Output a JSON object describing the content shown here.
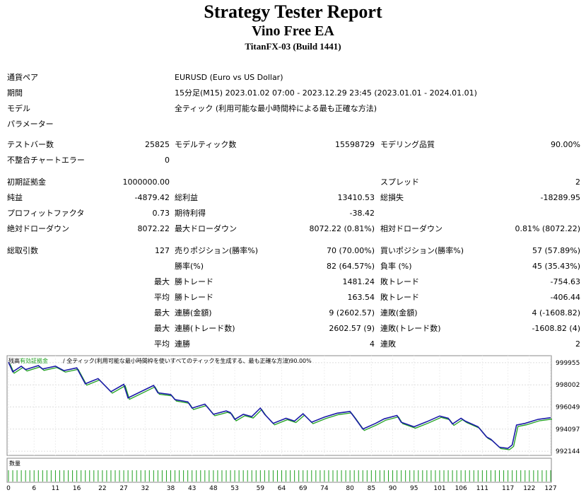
{
  "header": {
    "title": "Strategy Tester Report",
    "ea_name": "Vino Free EA",
    "server": "TitanFX-03 (Build 1441)"
  },
  "info": {
    "symbol_label": "通貨ペア",
    "symbol_value": "EURUSD (Euro vs US Dollar)",
    "period_label": "期間",
    "period_value": "15分足(M15) 2023.01.02 07:00 - 2023.12.29 23:45 (2023.01.01 - 2024.01.01)",
    "model_label": "モデル",
    "model_value": "全ティック (利用可能な最小時間枠による最も正確な方法)",
    "params_label": "パラメーター"
  },
  "stats": {
    "bars_label": "テストバー数",
    "bars_value": "25825",
    "ticks_label": "モデルティック数",
    "ticks_value": "15598729",
    "quality_label": "モデリング品質",
    "quality_value": "90.00%",
    "mismatch_label": "不整合チャートエラー",
    "mismatch_value": "0",
    "deposit_label": "初期証拠金",
    "deposit_value": "1000000.00",
    "spread_label": "スプレッド",
    "spread_value": "2",
    "netprofit_label": "純益",
    "netprofit_value": "-4879.42",
    "grossprofit_label": "総利益",
    "grossprofit_value": "13410.53",
    "grossloss_label": "総損失",
    "grossloss_value": "-18289.95",
    "pf_label": "プロフィットファクタ",
    "pf_value": "0.73",
    "expected_label": "期待利得",
    "expected_value": "-38.42",
    "absdd_label": "絶対ドローダウン",
    "absdd_value": "8072.22",
    "maxdd_label": "最大ドローダウン",
    "maxdd_value": "8072.22 (0.81%)",
    "reldd_label": "相対ドローダウン",
    "reldd_value": "0.81% (8072.22)",
    "trades_label": "総取引数",
    "trades_value": "127",
    "short_label": "売りポジション(勝率%)",
    "short_value": "70 (70.00%)",
    "long_label": "買いポジション(勝率%)",
    "long_value": "57 (57.89%)",
    "winrate_label": "勝率(%)",
    "winrate_value": "82 (64.57%)",
    "lossrate_label": "負率 (%)",
    "lossrate_value": "45 (35.43%)",
    "max_label": "最大",
    "avg_label": "平均",
    "largest_win_label": "勝トレード",
    "largest_win_value": "1481.24",
    "largest_loss_label": "敗トレード",
    "largest_loss_value": "-754.63",
    "avg_win_label": "勝トレード",
    "avg_win_value": "163.54",
    "avg_loss_label": "敗トレード",
    "avg_loss_value": "-406.44",
    "consec_wins_money_label": "連勝(金額)",
    "consec_wins_money_value": "9 (2602.57)",
    "consec_loss_money_label": "連敗(金額)",
    "consec_loss_money_value": "4 (-1608.82)",
    "consec_wins_count_label": "連勝(トレード数)",
    "consec_wins_count_value": "2602.57 (9)",
    "consec_loss_count_label": "連敗(トレード数)",
    "consec_loss_count_value": "-1608.82 (4)",
    "avg_consec_wins_label": "連勝",
    "avg_consec_wins_value": "4",
    "avg_consec_loss_label": "連敗",
    "avg_consec_loss_value": "2"
  },
  "chart": {
    "legend_balance": "残高",
    "legend_equity": "有効証拠金",
    "legend_rest": "/ 全ティック(利用可能な最小時間枠を使いすべてのティックを生成する、最も正確な方法)",
    "legend_quality": "/ 90.00%",
    "volume_label": "数量",
    "colors": {
      "balance": "#1a1aa8",
      "equity": "#20a020",
      "volume": "#20a020",
      "border": "#888888"
    }
  },
  "chart_data": {
    "type": "line",
    "y_ticks": [
      "999955",
      "998002",
      "996049",
      "994097",
      "992144"
    ],
    "x_ticks": [
      "0",
      "6",
      "11",
      "16",
      "22",
      "27",
      "32",
      "38",
      "43",
      "48",
      "53",
      "59",
      "64",
      "69",
      "74",
      "80",
      "85",
      "90",
      "95",
      "101",
      "106",
      "111",
      "117",
      "122",
      "127"
    ],
    "xlim": [
      0,
      127
    ],
    "ylim": [
      991900,
      1000450
    ],
    "series": [
      {
        "name": "残高",
        "points": [
          [
            0,
            1000000
          ],
          [
            1,
            999150
          ],
          [
            3,
            999650
          ],
          [
            4,
            999350
          ],
          [
            7,
            999700
          ],
          [
            8,
            999400
          ],
          [
            11,
            999650
          ],
          [
            13,
            999250
          ],
          [
            16,
            999500
          ],
          [
            18,
            998100
          ],
          [
            21,
            998550
          ],
          [
            24,
            997400
          ],
          [
            27,
            998050
          ],
          [
            28,
            996850
          ],
          [
            31,
            997400
          ],
          [
            34,
            997950
          ],
          [
            35,
            997300
          ],
          [
            38,
            997150
          ],
          [
            39,
            996700
          ],
          [
            42,
            996500
          ],
          [
            43,
            995950
          ],
          [
            46,
            996300
          ],
          [
            48,
            995400
          ],
          [
            51,
            995700
          ],
          [
            52,
            995550
          ],
          [
            53,
            994950
          ],
          [
            55,
            995400
          ],
          [
            57,
            995200
          ],
          [
            59,
            995950
          ],
          [
            60,
            995400
          ],
          [
            62,
            994600
          ],
          [
            65,
            995050
          ],
          [
            67,
            994800
          ],
          [
            69,
            995450
          ],
          [
            71,
            994700
          ],
          [
            74,
            995150
          ],
          [
            77,
            995500
          ],
          [
            80,
            995650
          ],
          [
            81,
            995150
          ],
          [
            83,
            994100
          ],
          [
            86,
            994600
          ],
          [
            88,
            995000
          ],
          [
            91,
            995300
          ],
          [
            92,
            994700
          ],
          [
            95,
            994300
          ],
          [
            98,
            994750
          ],
          [
            101,
            995250
          ],
          [
            103,
            995050
          ],
          [
            104,
            994550
          ],
          [
            106,
            995050
          ],
          [
            107,
            994800
          ],
          [
            110,
            994300
          ],
          [
            112,
            993400
          ],
          [
            113,
            993200
          ],
          [
            115,
            992500
          ],
          [
            117,
            992400
          ],
          [
            118,
            992700
          ],
          [
            119,
            994450
          ],
          [
            121,
            994600
          ],
          [
            124,
            994950
          ],
          [
            127,
            995100
          ]
        ]
      }
    ]
  }
}
